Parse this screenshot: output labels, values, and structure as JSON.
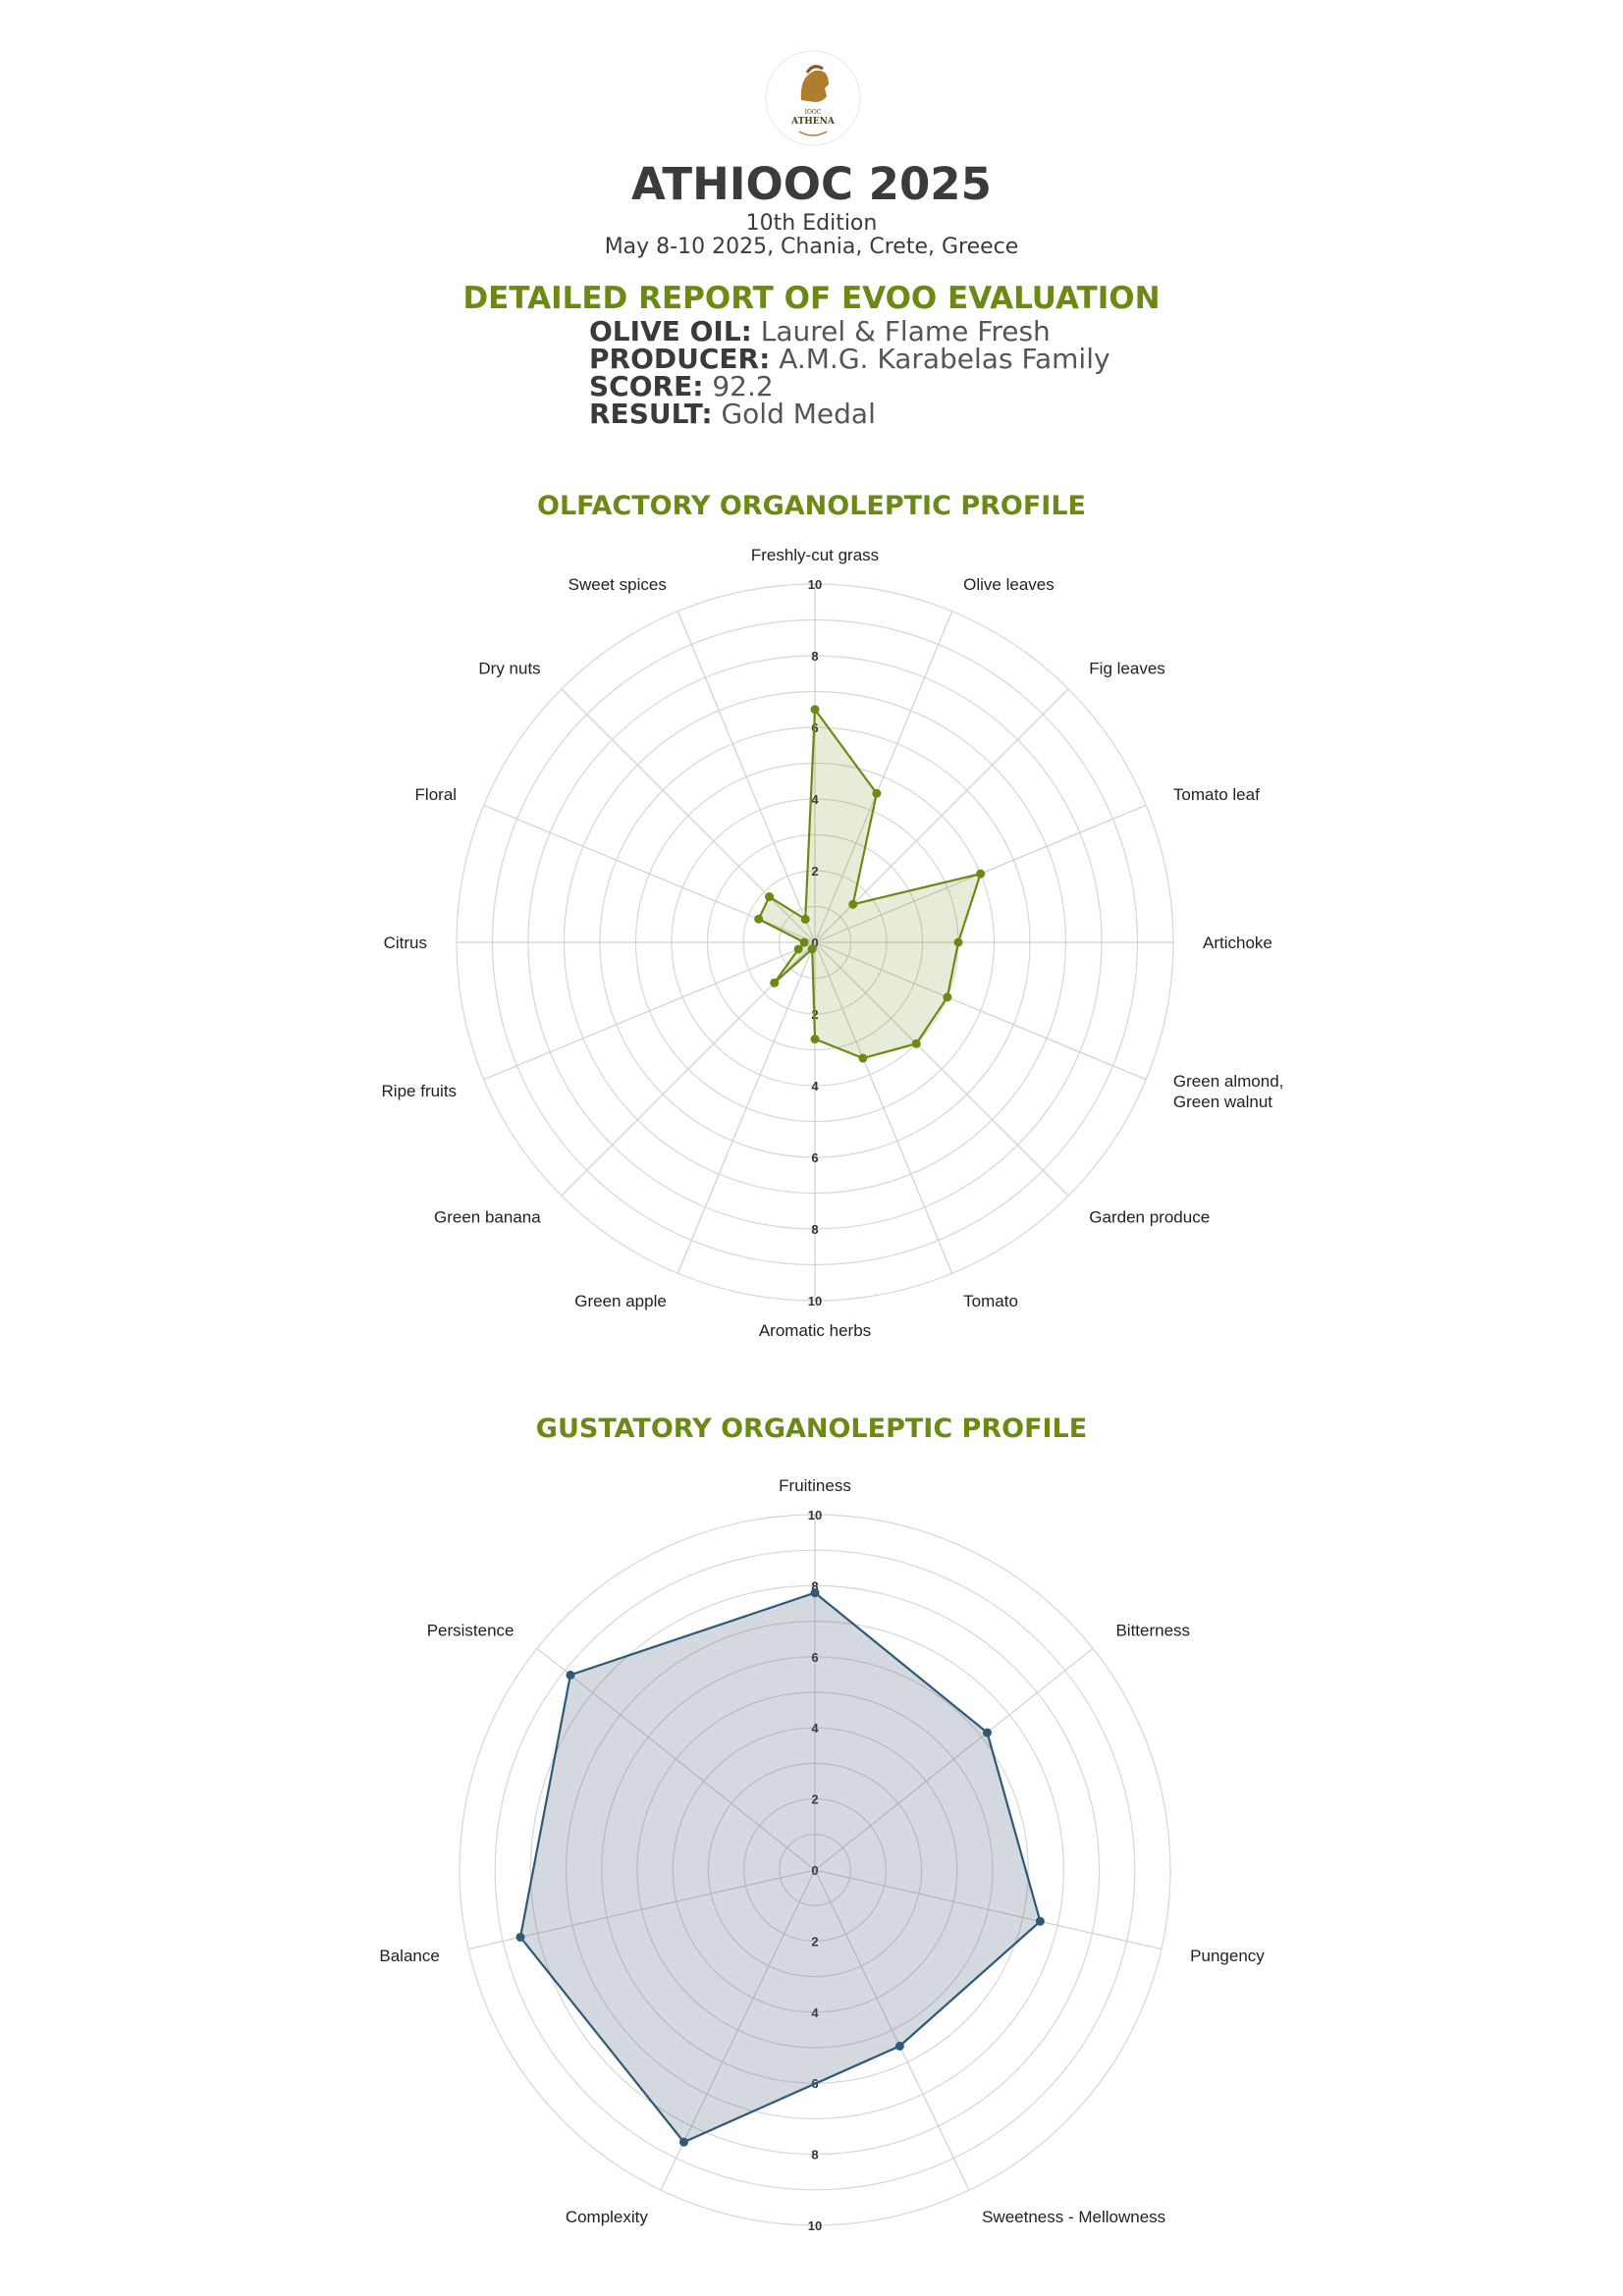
{
  "logo": {
    "line1": "IOOC",
    "line2": "ATHENA",
    "colors": {
      "gold": "#b07c2e",
      "dark": "#5a3b14"
    }
  },
  "header": {
    "title": "ATHIOOC 2025",
    "edition": "10th Edition",
    "dates": "May 8-10 2025, Chania, Crete, Greece"
  },
  "report": {
    "title": "DETAILED REPORT OF EVOO EVALUATION",
    "fields": [
      {
        "label": "OLIVE OIL:",
        "value": "Laurel & Flame Fresh"
      },
      {
        "label": "PRODUCER:",
        "value": "A.M.G. Karabelas Family"
      },
      {
        "label": "SCORE:",
        "value": "92.2"
      },
      {
        "label": "RESULT:",
        "value": "Gold Medal"
      }
    ]
  },
  "chart_data": [
    {
      "type": "radar",
      "title": "OLFACTORY ORGANOLEPTIC PROFILE",
      "scale": [
        0,
        10
      ],
      "tick_labels": [
        "0",
        "2",
        "4",
        "6",
        "8",
        "10"
      ],
      "color": "#6b8a14",
      "fill": "rgba(107,138,20,0.16)",
      "axes": [
        "Freshly-cut grass",
        "Olive leaves",
        "Fig leaves",
        "Tomato leaf",
        "Artichoke",
        "Green almond,\nGreen walnut",
        "Garden produce",
        "Tomato",
        "Aromatic herbs",
        "Green apple",
        "Green banana",
        "Ripe fruits",
        "Citrus",
        "Floral",
        "Dry nuts",
        "Sweet spices"
      ],
      "values": [
        6.5,
        4.5,
        1.5,
        5.0,
        4.0,
        4.0,
        4.0,
        3.5,
        2.7,
        0.2,
        1.6,
        0.5,
        0.3,
        1.7,
        1.8,
        0.7
      ]
    },
    {
      "type": "radar",
      "title": "GUSTATORY ORGANOLEPTIC PROFILE",
      "scale": [
        0,
        10
      ],
      "tick_labels": [
        "0",
        "2",
        "4",
        "6",
        "8",
        "10"
      ],
      "color": "#2e5a78",
      "fill": "rgba(73,98,120,0.24)",
      "axes": [
        "Fruitiness",
        "Bitterness",
        "Pungency",
        "Sweetness - Mellowness",
        "Complexity",
        "Balance",
        "Persistence"
      ],
      "values": [
        7.8,
        6.2,
        6.5,
        5.5,
        8.5,
        8.5,
        8.8
      ]
    }
  ]
}
